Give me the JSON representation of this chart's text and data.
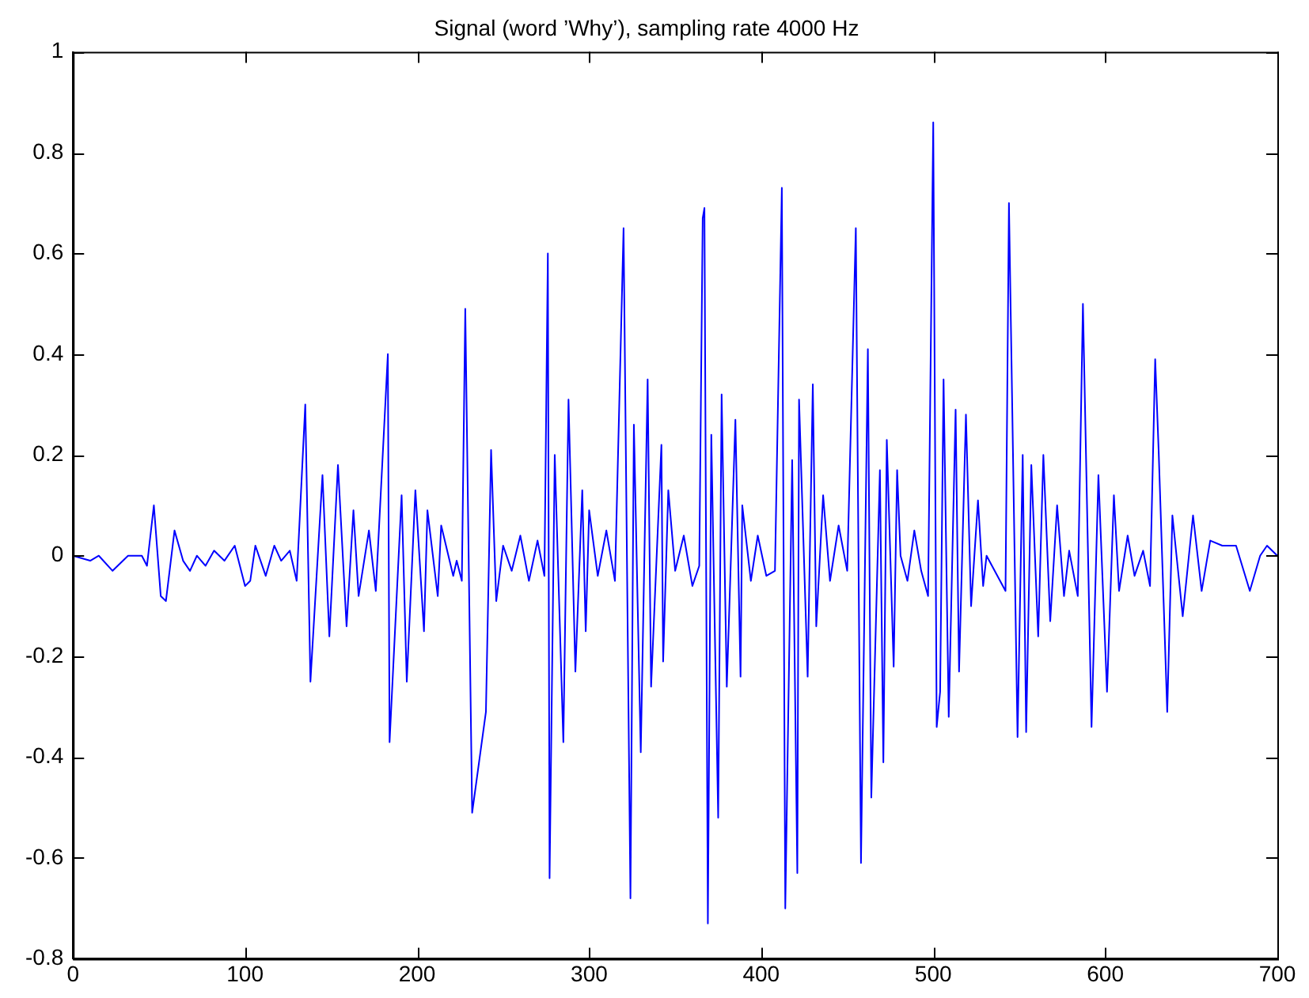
{
  "chart_data": {
    "type": "line",
    "title": "Signal (word ’Why’), sampling rate 4000 Hz",
    "xlim": [
      0,
      700
    ],
    "xticks": [
      0,
      100,
      200,
      300,
      400,
      500,
      600,
      700
    ],
    "ylim": [
      -0.8,
      1
    ],
    "yticks": [
      -0.8,
      -0.6,
      -0.4,
      -0.2,
      0,
      0.2,
      0.4,
      0.6,
      0.8,
      1
    ],
    "grid": false,
    "legend": false,
    "marker": "none",
    "line_style": "solid",
    "series": [
      {
        "color": "#0000ff",
        "x": [
          0,
          10,
          15,
          23,
          32,
          40,
          43,
          47,
          51,
          54,
          59,
          64,
          68,
          72,
          77,
          82,
          88,
          94,
          100,
          103,
          106,
          112,
          117,
          121,
          126,
          130,
          135,
          138,
          145,
          149,
          154,
          159,
          163,
          166,
          172,
          176,
          183,
          184,
          191,
          194,
          199,
          204,
          206,
          212,
          214,
          221,
          223,
          226,
          228,
          232,
          240,
          243,
          246,
          250,
          255,
          260,
          265,
          270,
          274,
          276,
          277,
          280,
          285,
          288,
          292,
          296,
          298,
          300,
          305,
          310,
          315,
          320,
          324,
          326,
          330,
          334,
          336,
          342,
          343,
          346,
          350,
          355,
          360,
          364,
          366,
          367,
          369,
          371,
          375,
          377,
          380,
          385,
          388,
          389,
          394,
          398,
          403,
          408,
          412,
          414,
          418,
          421,
          422,
          427,
          430,
          432,
          436,
          440,
          445,
          450,
          455,
          458,
          462,
          464,
          469,
          471,
          473,
          477,
          479,
          481,
          485,
          489,
          493,
          497,
          500,
          502,
          504,
          506,
          509,
          513,
          515,
          519,
          522,
          526,
          529,
          531,
          542,
          544,
          549,
          552,
          554,
          557,
          561,
          564,
          568,
          572,
          576,
          579,
          584,
          587,
          592,
          596,
          601,
          605,
          608,
          613,
          617,
          622,
          626,
          629,
          631,
          636,
          639,
          645,
          651,
          656,
          661,
          668,
          676,
          684,
          690,
          694,
          700
        ],
        "values": [
          0,
          -0.01,
          0,
          -0.03,
          0,
          0,
          -0.02,
          0.1,
          -0.08,
          -0.09,
          0.05,
          -0.01,
          -0.03,
          0,
          -0.02,
          0.01,
          -0.01,
          0.02,
          -0.06,
          -0.05,
          0.02,
          -0.04,
          0.02,
          -0.01,
          0.01,
          -0.05,
          0.3,
          -0.25,
          0.16,
          -0.16,
          0.18,
          -0.14,
          0.09,
          -0.08,
          0.05,
          -0.07,
          0.4,
          -0.37,
          0.12,
          -0.25,
          0.13,
          -0.15,
          0.09,
          -0.08,
          0.06,
          -0.04,
          -0.01,
          -0.05,
          0.49,
          -0.51,
          -0.31,
          0.21,
          -0.09,
          0.02,
          -0.03,
          0.04,
          -0.05,
          0.03,
          -0.04,
          0.6,
          -0.64,
          0.2,
          -0.37,
          0.31,
          -0.23,
          0.13,
          -0.15,
          0.09,
          -0.04,
          0.05,
          -0.05,
          0.65,
          -0.68,
          0.26,
          -0.39,
          0.35,
          -0.26,
          0.22,
          -0.21,
          0.13,
          -0.03,
          0.04,
          -0.06,
          -0.02,
          0.67,
          0.69,
          -0.73,
          0.24,
          -0.52,
          0.32,
          -0.26,
          0.27,
          -0.24,
          0.1,
          -0.05,
          0.04,
          -0.04,
          -0.03,
          0.73,
          -0.7,
          0.19,
          -0.63,
          0.31,
          -0.24,
          0.34,
          -0.14,
          0.12,
          -0.05,
          0.06,
          -0.03,
          0.65,
          -0.61,
          0.41,
          -0.48,
          0.17,
          -0.41,
          0.23,
          -0.22,
          0.17,
          0,
          -0.05,
          0.05,
          -0.03,
          -0.08,
          0.86,
          -0.34,
          -0.27,
          0.35,
          -0.32,
          0.29,
          -0.23,
          0.28,
          -0.1,
          0.11,
          -0.06,
          0,
          -0.07,
          0.7,
          -0.36,
          0.2,
          -0.35,
          0.18,
          -0.16,
          0.2,
          -0.13,
          0.1,
          -0.08,
          0.01,
          -0.08,
          0.5,
          -0.34,
          0.16,
          -0.27,
          0.12,
          -0.07,
          0.04,
          -0.04,
          0.01,
          -0.06,
          0.39,
          0.21,
          -0.31,
          0.08,
          -0.12,
          0.08,
          -0.07,
          0.03,
          0.02,
          0.02,
          -0.07,
          0,
          0.02,
          0
        ]
      }
    ]
  }
}
